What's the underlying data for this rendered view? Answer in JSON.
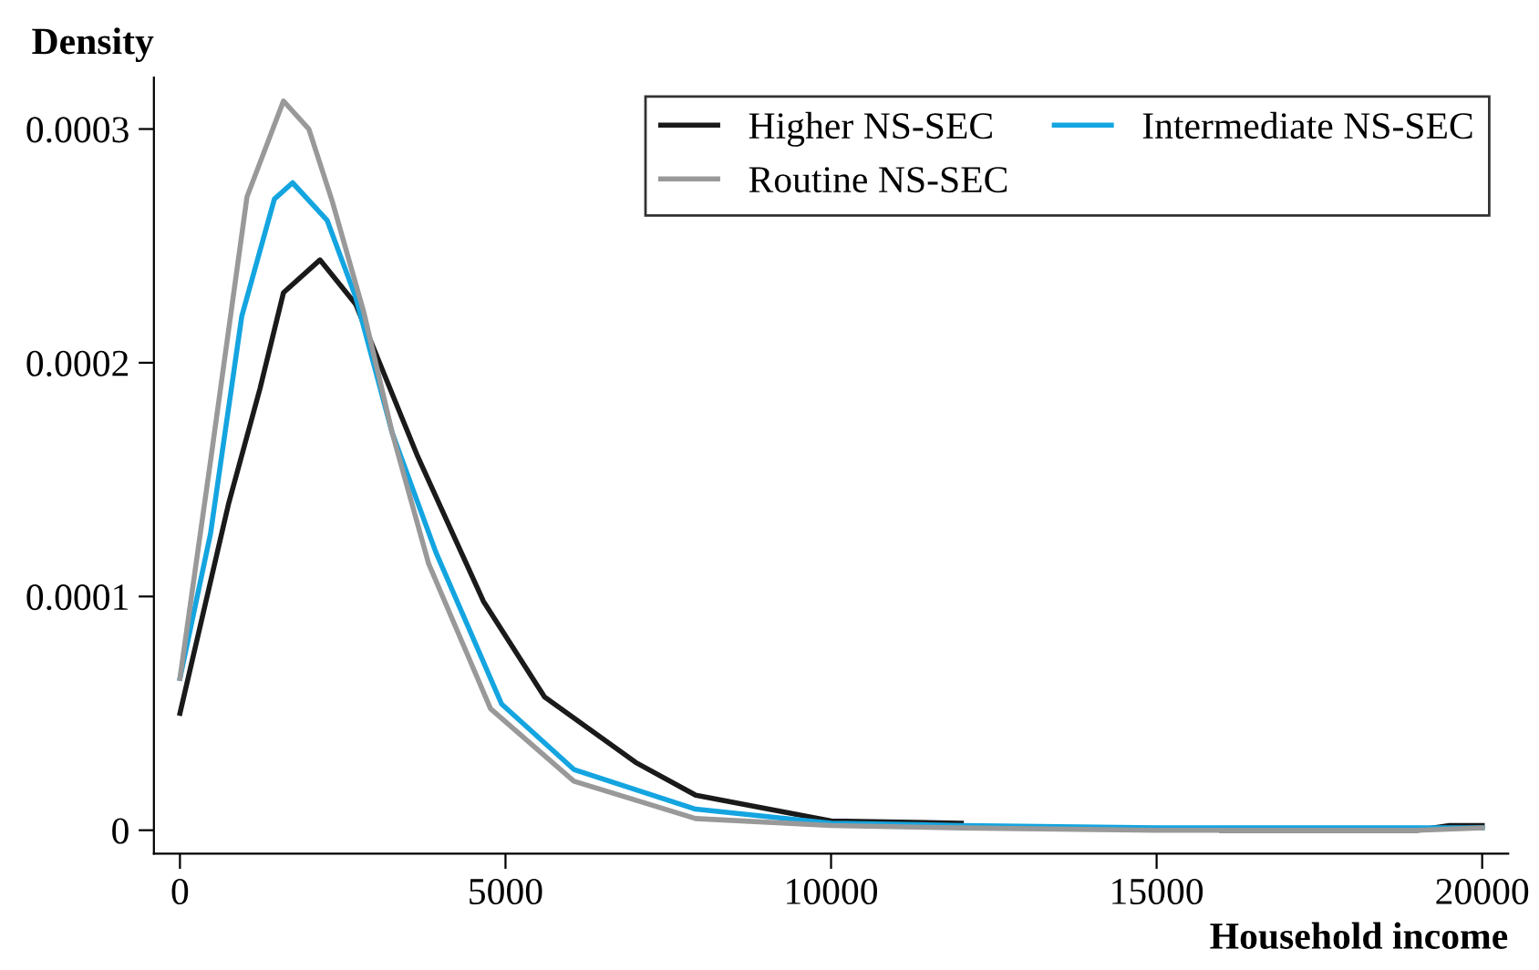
{
  "chart_data": {
    "type": "line",
    "xlabel": "Household income",
    "ylabel": "Density",
    "xlim": [
      -400,
      20400
    ],
    "xticks": [
      0,
      5000,
      10000,
      15000,
      20000
    ],
    "ylim": [
      -1e-05,
      0.000322
    ],
    "yticks": [
      0,
      0.0001,
      0.0002,
      0.0003
    ],
    "grid": false,
    "legend": "top right",
    "marker": "none",
    "line_style": "solid",
    "series": [
      {
        "name": "Higher NS-SEC",
        "color": "#1a1a1a",
        "x": [
          0,
          750,
          1230,
          1590,
          2150,
          2700,
          3650,
          4660,
          5600,
          7000,
          7920,
          10000,
          12000,
          14000,
          16000,
          19000,
          19500,
          20000
        ],
        "values": [
          5e-05,
          0.00014,
          0.000189,
          0.00023,
          0.000244,
          0.000225,
          0.00016,
          9.8e-05,
          5.7e-05,
          2.9e-05,
          1.5e-05,
          4e-06,
          3e-06,
          null,
          0,
          0,
          2e-06,
          2e-06
        ]
      },
      {
        "name": "Intermediate NS-SEC",
        "color": "#14a5e0",
        "x": [
          0,
          470,
          950,
          1450,
          1730,
          2260,
          2700,
          3260,
          3930,
          4940,
          6050,
          7920,
          10000,
          12000,
          15000,
          20000
        ],
        "values": [
          6.5e-05,
          0.000127,
          0.00022,
          0.00027,
          0.000277,
          0.000261,
          0.000228,
          0.00017,
          0.000119,
          5.4e-05,
          2.6e-05,
          9e-06,
          3e-06,
          2e-06,
          1e-06,
          1e-06
        ]
      },
      {
        "name": "Routine NS-SEC",
        "color": "#999999",
        "x": [
          0,
          470,
          1030,
          1590,
          1980,
          2340,
          2820,
          3260,
          3820,
          4770,
          6050,
          7920,
          10000,
          12000,
          15000,
          19000,
          20000
        ],
        "values": [
          6.5e-05,
          0.000158,
          0.000271,
          0.000312,
          0.0003,
          0.000269,
          0.000222,
          0.00017,
          0.000114,
          5.2e-05,
          2.1e-05,
          5e-06,
          2e-06,
          1e-06,
          0,
          0,
          1e-06
        ]
      }
    ]
  }
}
